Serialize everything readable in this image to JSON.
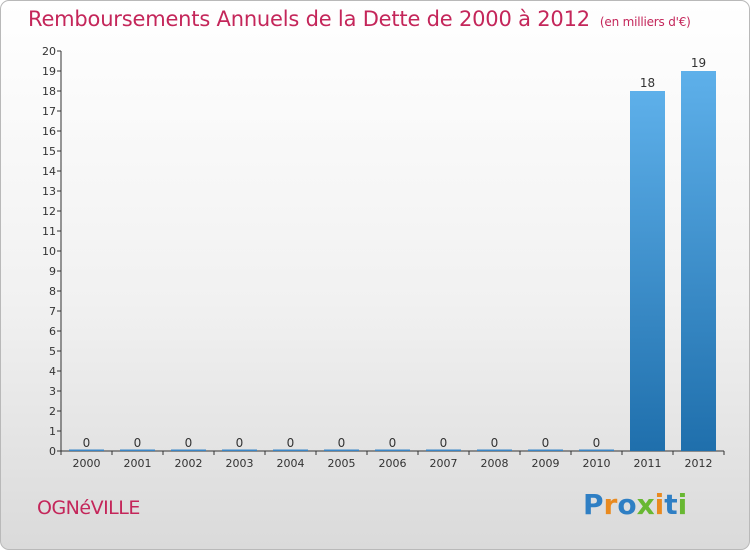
{
  "title": "Remboursements Annuels de la Dette de 2000 à 2012",
  "unit_note": "(en milliers d'€)",
  "commune": "OGNéVILLE",
  "brand": {
    "text": "Proxiti",
    "letter_colors": [
      "#2f7fc4",
      "#e98a1f",
      "#2f7fc4",
      "#68b832",
      "#e98a1f",
      "#2f7fc4",
      "#68b832"
    ]
  },
  "colors": {
    "title": "#c4265a",
    "bar_top": "#5eb0ea",
    "bar_bottom": "#1f6fac",
    "axis": "#333333",
    "zero_bar": "#3b86c6"
  },
  "chart_data": {
    "type": "bar",
    "categories": [
      "2000",
      "2001",
      "2002",
      "2003",
      "2004",
      "2005",
      "2006",
      "2007",
      "2008",
      "2009",
      "2010",
      "2011",
      "2012"
    ],
    "values": [
      0,
      0,
      0,
      0,
      0,
      0,
      0,
      0,
      0,
      0,
      0,
      18,
      19
    ],
    "data_labels": [
      "0",
      "0",
      "0",
      "0",
      "0",
      "0",
      "0",
      "0",
      "0",
      "0",
      "0",
      "18",
      "19"
    ],
    "title": "Remboursements Annuels de la Dette de 2000 à 2012",
    "ylim": [
      0,
      20
    ],
    "yticks": [
      0,
      1,
      2,
      3,
      4,
      5,
      6,
      7,
      8,
      9,
      10,
      11,
      12,
      13,
      14,
      15,
      16,
      17,
      18,
      19,
      20
    ],
    "grid": false,
    "legend": "none"
  }
}
